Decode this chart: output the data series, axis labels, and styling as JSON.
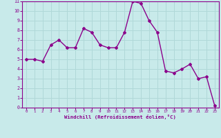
{
  "x": [
    0,
    1,
    2,
    3,
    4,
    5,
    6,
    7,
    8,
    9,
    10,
    11,
    12,
    13,
    14,
    15,
    16,
    17,
    18,
    19,
    20,
    21,
    22,
    23
  ],
  "y": [
    5.0,
    5.0,
    4.8,
    6.5,
    7.0,
    6.2,
    6.2,
    8.2,
    7.8,
    6.5,
    6.2,
    6.2,
    7.8,
    11.0,
    10.8,
    9.0,
    7.8,
    3.8,
    3.6,
    4.0,
    4.5,
    3.0,
    3.2,
    0.2
  ],
  "line_color": "#8b008b",
  "marker": "D",
  "marker_size": 2.0,
  "bg_color": "#c8eaea",
  "grid_color": "#b0d8d8",
  "xlabel": "Windchill (Refroidissement éolien,°C)",
  "xlabel_color": "#8b008b",
  "tick_color": "#8b008b",
  "spine_color": "#8b008b",
  "xlim": [
    -0.5,
    23.5
  ],
  "ylim": [
    0,
    11
  ],
  "xticks": [
    0,
    1,
    2,
    3,
    4,
    5,
    6,
    7,
    8,
    9,
    10,
    11,
    12,
    13,
    14,
    15,
    16,
    17,
    18,
    19,
    20,
    21,
    22,
    23
  ],
  "yticks": [
    0,
    1,
    2,
    3,
    4,
    5,
    6,
    7,
    8,
    9,
    10,
    11
  ]
}
